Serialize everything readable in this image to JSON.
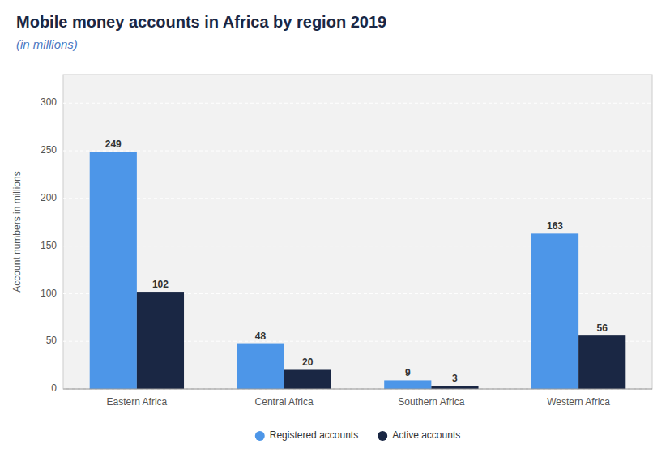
{
  "chart_data": {
    "type": "bar",
    "title": "Mobile money accounts in Africa by region 2019",
    "subtitle": "(in millions)",
    "categories": [
      "Eastern Africa",
      "Central Africa",
      "Southern Africa",
      "Western Africa"
    ],
    "series": [
      {
        "name": "Registered accounts",
        "color": "#4d96e8",
        "values": [
          249,
          48,
          9,
          163
        ]
      },
      {
        "name": "Active accounts",
        "color": "#1a2744",
        "values": [
          102,
          20,
          3,
          56
        ]
      }
    ],
    "ylabel": "Account numbers in millions",
    "ylim": [
      0,
      330
    ],
    "yticks": [
      0,
      50,
      100,
      150,
      200,
      250,
      300
    ],
    "grid": true,
    "legend": "bottom",
    "data_labels": true
  }
}
